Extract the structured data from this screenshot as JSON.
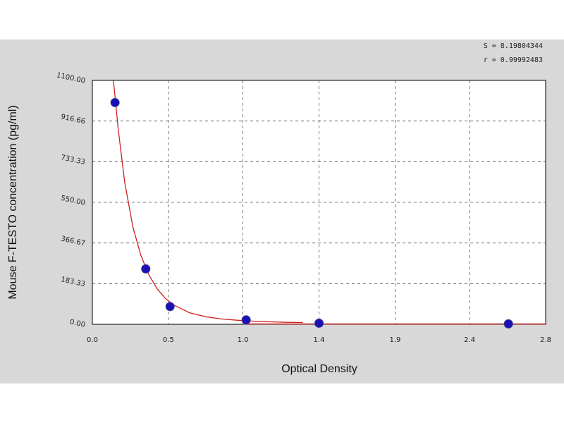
{
  "chart_data": {
    "type": "scatter",
    "title": "",
    "xlabel": "Optical Density",
    "ylabel": "Mouse F-TESTO concentration (pg/ml)",
    "xlim": [
      0.0,
      2.8
    ],
    "ylim": [
      0.0,
      1100.0
    ],
    "x_ticks": [
      "0.0",
      "0.5",
      "1.0",
      "1.4",
      "1.9",
      "2.4",
      "2.8"
    ],
    "x_tick_values": [
      0.0,
      0.47,
      0.93,
      1.4,
      1.87,
      2.33,
      2.8
    ],
    "y_ticks": [
      "0.00",
      "183.33",
      "366.67",
      "550.00",
      "733.33",
      "916.66",
      "1100.00"
    ],
    "y_tick_values": [
      0.0,
      183.33,
      366.67,
      550.0,
      733.33,
      916.66,
      1100.0
    ],
    "grid": true,
    "series": [
      {
        "points": [
          {
            "x": 0.14,
            "y": 1000.0
          },
          {
            "x": 0.33,
            "y": 250.0
          },
          {
            "x": 0.48,
            "y": 80.0
          },
          {
            "x": 0.95,
            "y": 20.0
          },
          {
            "x": 1.4,
            "y": 5.0
          },
          {
            "x": 2.57,
            "y": 2.0
          }
        ],
        "color": "#1a10b8"
      }
    ],
    "fit_curve": {
      "x": [
        0.13,
        0.16,
        0.2,
        0.25,
        0.3,
        0.35,
        0.4,
        0.45,
        0.5,
        0.6,
        0.7,
        0.8,
        0.9,
        1.0,
        1.1,
        1.2,
        1.3
      ],
      "y": [
        1100,
        880,
        640,
        440,
        310,
        222,
        160,
        118,
        88,
        52,
        34,
        24,
        18,
        14,
        11,
        9,
        8
      ],
      "color": "#cc2020"
    },
    "stats": [
      "S = 8.19804344",
      "r = 0.99992483"
    ],
    "colors": {
      "background": "#d8d8d8",
      "plot_area": "#ffffff",
      "points": "#1a10b8",
      "curve": "#cc2020",
      "baseline": "#cc3333"
    }
  }
}
